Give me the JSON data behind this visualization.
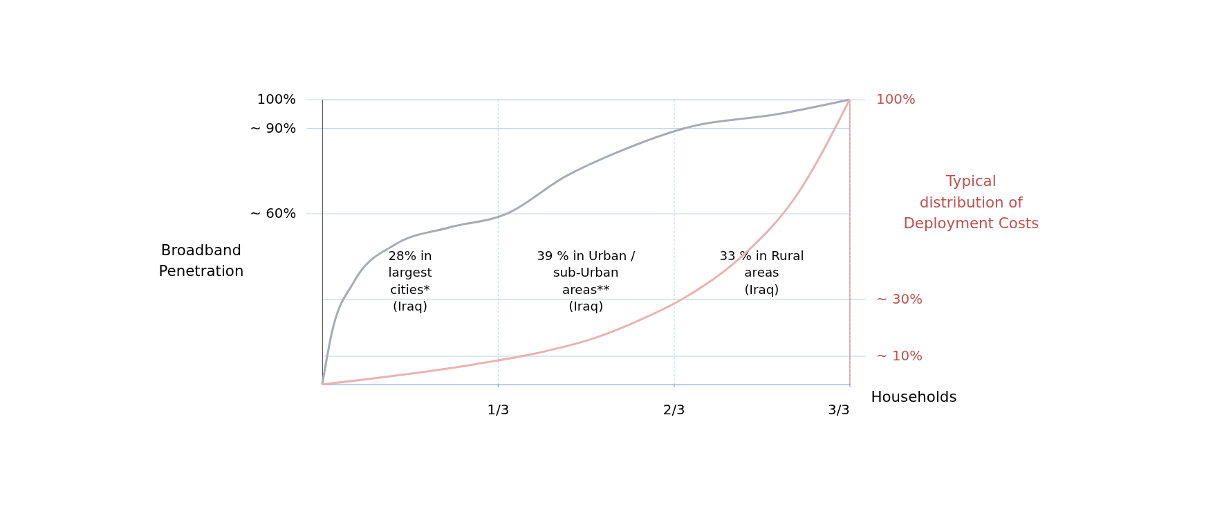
{
  "chart_data": {
    "type": "line",
    "xlabel": "Households",
    "ylabel": "Broadband\nPenetration",
    "y2label": "Typical\ndistribution of\nDeployment Costs",
    "xlim": [
      0,
      1
    ],
    "xticks": [
      {
        "value": 0.3333,
        "label": "1/3"
      },
      {
        "value": 0.6667,
        "label": "2/3"
      },
      {
        "value": 1,
        "label": "3/3"
      }
    ],
    "ylim": [
      0,
      100
    ],
    "yticks": [
      {
        "value": 60,
        "label": "~ 60%"
      },
      {
        "value": 90,
        "label": "~ 90%"
      },
      {
        "value": 100,
        "label": "100%"
      }
    ],
    "y2lim": [
      0,
      100
    ],
    "y2ticks": [
      {
        "value": 10,
        "label": "~ 10%"
      },
      {
        "value": 30,
        "label": "~ 30%"
      },
      {
        "value": 100,
        "label": "100%"
      }
    ],
    "series": [
      {
        "color": "#a6abb4",
        "x": [
          0,
          0.018,
          0.06,
          0.137,
          0.239,
          0.351,
          0.461,
          0.566,
          0.688,
          0.867,
          1
        ],
        "values": [
          0,
          18,
          36,
          49,
          55,
          60,
          73,
          82,
          90,
          95,
          100
        ]
      },
      {
        "color": "#e9b3b3",
        "axis": "y2",
        "x": [
          0,
          0.287,
          0.407,
          0.512,
          0.619,
          0.683,
          0.796,
          0.898,
          1
        ],
        "values": [
          0,
          7,
          11,
          16,
          24,
          30,
          45,
          66,
          100
        ]
      }
    ],
    "annotations": [
      "28% in\nlargest\ncities*\n(Iraq)",
      "39 % in Urban /\nsub-Urban\nareas**\n(Iraq)",
      "33 % in Rural\nareas\n(Iraq)"
    ],
    "grid": true
  }
}
